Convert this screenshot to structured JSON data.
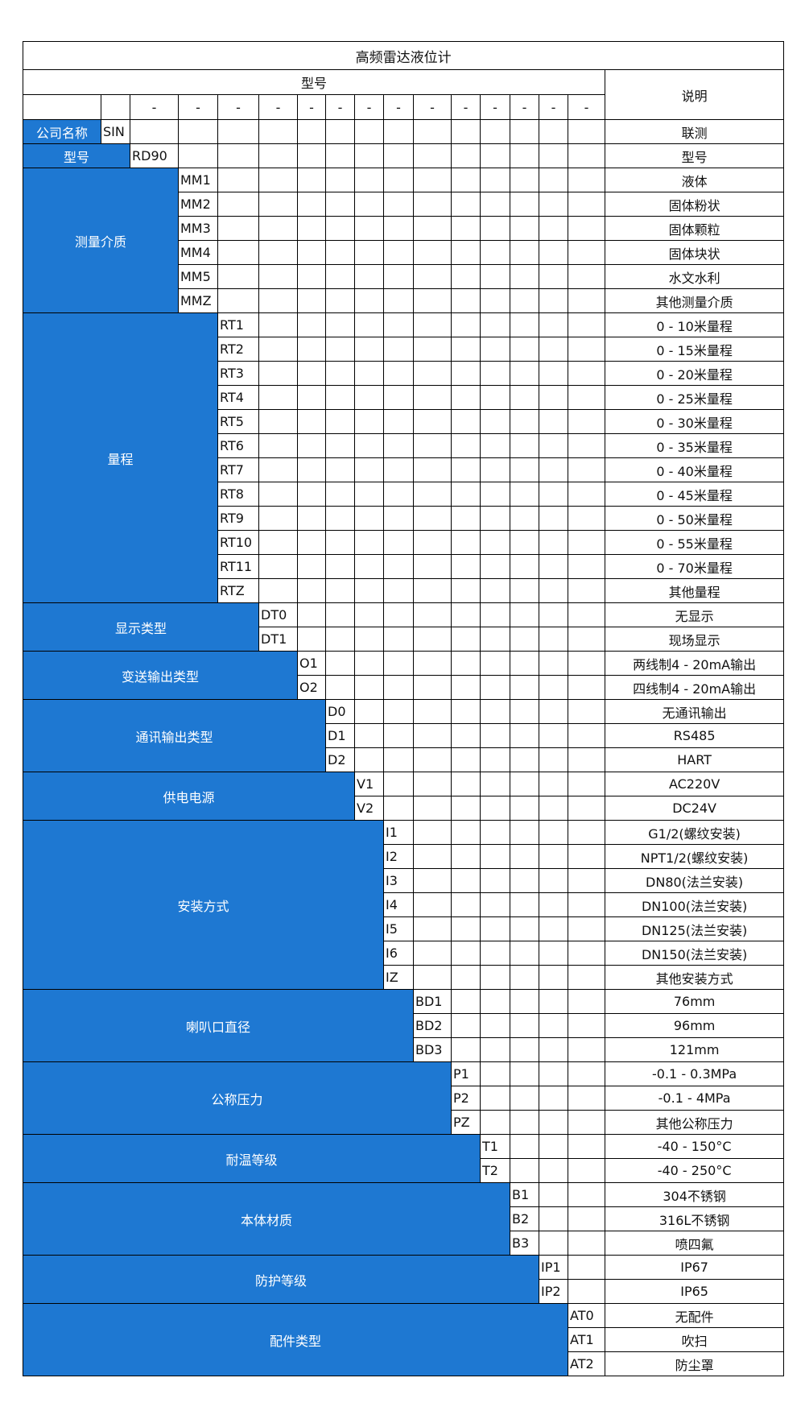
{
  "title": "高频雷达液位计",
  "header": {
    "model_label": "型号",
    "desc_label": "说明",
    "separator": "-"
  },
  "colors": {
    "label_bg": "#1e78d2",
    "label_text": "#ffffff",
    "border": "#000000"
  },
  "groups": [
    {
      "label": "公司名称",
      "items": [
        {
          "code": "SIN",
          "desc": "联测"
        }
      ]
    },
    {
      "label": "型号",
      "items": [
        {
          "code": "RD90",
          "desc": "型号"
        }
      ]
    },
    {
      "label": "测量介质",
      "items": [
        {
          "code": "MM1",
          "desc": "液体"
        },
        {
          "code": "MM2",
          "desc": "固体粉状"
        },
        {
          "code": "MM3",
          "desc": "固体颗粒"
        },
        {
          "code": "MM4",
          "desc": "固体块状"
        },
        {
          "code": "MM5",
          "desc": "水文水利"
        },
        {
          "code": "MMZ",
          "desc": "其他测量介质"
        }
      ]
    },
    {
      "label": "量程",
      "items": [
        {
          "code": "RT1",
          "desc": "0 - 10米量程"
        },
        {
          "code": "RT2",
          "desc": "0 - 15米量程"
        },
        {
          "code": "RT3",
          "desc": "0 - 20米量程"
        },
        {
          "code": "RT4",
          "desc": "0 - 25米量程"
        },
        {
          "code": "RT5",
          "desc": "0 - 30米量程"
        },
        {
          "code": "RT6",
          "desc": "0 - 35米量程"
        },
        {
          "code": "RT7",
          "desc": "0 - 40米量程"
        },
        {
          "code": "RT8",
          "desc": "0 - 45米量程"
        },
        {
          "code": "RT9",
          "desc": "0 - 50米量程"
        },
        {
          "code": "RT10",
          "desc": "0 - 55米量程"
        },
        {
          "code": "RT11",
          "desc": "0 - 70米量程"
        },
        {
          "code": "RTZ",
          "desc": "其他量程"
        }
      ]
    },
    {
      "label": "显示类型",
      "items": [
        {
          "code": "DT0",
          "desc": "无显示"
        },
        {
          "code": "DT1",
          "desc": "现场显示"
        }
      ]
    },
    {
      "label": "变送输出类型",
      "items": [
        {
          "code": "O1",
          "desc": "两线制4 - 20mA输出"
        },
        {
          "code": "O2",
          "desc": "四线制4 - 20mA输出"
        }
      ]
    },
    {
      "label": "通讯输出类型",
      "items": [
        {
          "code": "D0",
          "desc": "无通讯输出"
        },
        {
          "code": "D1",
          "desc": "RS485"
        },
        {
          "code": "D2",
          "desc": "HART"
        }
      ]
    },
    {
      "label": "供电电源",
      "items": [
        {
          "code": "V1",
          "desc": "AC220V"
        },
        {
          "code": "V2",
          "desc": "DC24V"
        }
      ]
    },
    {
      "label": "安装方式",
      "items": [
        {
          "code": "I1",
          "desc": "G1/2(螺纹安装)"
        },
        {
          "code": "I2",
          "desc": "NPT1/2(螺纹安装)"
        },
        {
          "code": "I3",
          "desc": "DN80(法兰安装)"
        },
        {
          "code": "I4",
          "desc": "DN100(法兰安装)"
        },
        {
          "code": "I5",
          "desc": "DN125(法兰安装)"
        },
        {
          "code": "I6",
          "desc": "DN150(法兰安装)"
        },
        {
          "code": "IZ",
          "desc": "其他安装方式"
        }
      ]
    },
    {
      "label": "喇叭口直径",
      "items": [
        {
          "code": "BD1",
          "desc": "76mm"
        },
        {
          "code": "BD2",
          "desc": "96mm"
        },
        {
          "code": "BD3",
          "desc": "121mm"
        }
      ]
    },
    {
      "label": "公称压力",
      "items": [
        {
          "code": "P1",
          "desc": "-0.1 - 0.3MPa"
        },
        {
          "code": "P2",
          "desc": "-0.1 - 4MPa"
        },
        {
          "code": "PZ",
          "desc": "其他公称压力"
        }
      ]
    },
    {
      "label": "耐温等级",
      "items": [
        {
          "code": "T1",
          "desc": "-40 - 150°C"
        },
        {
          "code": "T2",
          "desc": "-40 - 250°C"
        }
      ]
    },
    {
      "label": "本体材质",
      "items": [
        {
          "code": "B1",
          "desc": "304不锈钢"
        },
        {
          "code": "B2",
          "desc": "316L不锈钢"
        },
        {
          "code": "B3",
          "desc": "喷四氟"
        }
      ]
    },
    {
      "label": "防护等级",
      "items": [
        {
          "code": "IP1",
          "desc": "IP67"
        },
        {
          "code": "IP2",
          "desc": "IP65"
        }
      ]
    },
    {
      "label": "配件类型",
      "items": [
        {
          "code": "AT0",
          "desc": "无配件"
        },
        {
          "code": "AT1",
          "desc": "吹扫"
        },
        {
          "code": "AT2",
          "desc": "防尘罩"
        }
      ]
    }
  ]
}
